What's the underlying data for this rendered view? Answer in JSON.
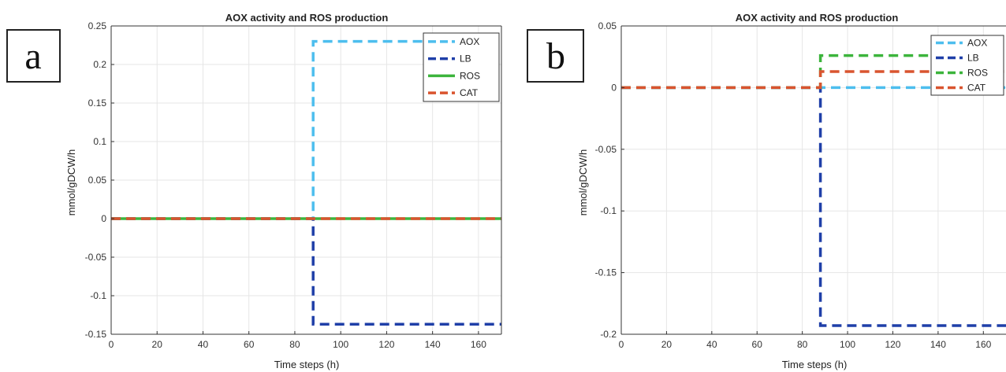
{
  "chart_data": [
    {
      "panel_label": "a",
      "type": "line",
      "title": "AOX activity and ROS production",
      "xlabel": "Time steps (h)",
      "ylabel": "mmol/gDCW/h",
      "xlim": [
        0,
        170
      ],
      "ylim": [
        -0.15,
        0.25
      ],
      "xticks": [
        0,
        20,
        40,
        60,
        80,
        100,
        120,
        140,
        160
      ],
      "xtick_labels": [
        "0",
        "20",
        "40",
        "60",
        "80",
        "100",
        "120",
        "140",
        "160"
      ],
      "yticks": [
        -0.15,
        -0.1,
        -0.05,
        0,
        0.05,
        0.1,
        0.15,
        0.2,
        0.25
      ],
      "ytick_labels": [
        "-0.15",
        "-0.1",
        "-0.05",
        "0",
        "0.05",
        "0.1",
        "0.15",
        "0.2",
        "0.25"
      ],
      "grid": true,
      "legend_position": "top-right",
      "series": [
        {
          "name": "AOX",
          "color": "#4DBEEE",
          "dash": "dashed",
          "points": [
            [
              0,
              0
            ],
            [
              88,
              0
            ],
            [
              88,
              0.23
            ],
            [
              170,
              0.23
            ]
          ]
        },
        {
          "name": "LB",
          "color": "#1F3FA8",
          "dash": "dashed",
          "points": [
            [
              0,
              0
            ],
            [
              88,
              0
            ],
            [
              88,
              -0.137
            ],
            [
              170,
              -0.137
            ]
          ]
        },
        {
          "name": "ROS",
          "color": "#3CB43C",
          "dash": "solid",
          "points": [
            [
              0,
              0
            ],
            [
              170,
              0
            ]
          ]
        },
        {
          "name": "CAT",
          "color": "#D9542F",
          "dash": "dashed",
          "points": [
            [
              0,
              0
            ],
            [
              170,
              0
            ]
          ]
        }
      ]
    },
    {
      "panel_label": "b",
      "type": "line",
      "title": "AOX activity and ROS production",
      "xlabel": "Time steps (h)",
      "ylabel": "mmol/gDCW/h",
      "xlim": [
        0,
        170
      ],
      "ylim": [
        -0.2,
        0.05
      ],
      "xticks": [
        0,
        20,
        40,
        60,
        80,
        100,
        120,
        140,
        160
      ],
      "xtick_labels": [
        "0",
        "20",
        "40",
        "60",
        "80",
        "100",
        "120",
        "140",
        "160"
      ],
      "yticks": [
        -0.2,
        -0.15,
        -0.1,
        -0.05,
        0,
        0.05
      ],
      "ytick_labels": [
        "-0.2",
        "-0.15",
        "-0.1",
        "-0.05",
        "0",
        "0.05"
      ],
      "grid": true,
      "legend_position": "top-right",
      "series": [
        {
          "name": "AOX",
          "color": "#4DBEEE",
          "dash": "dashed",
          "points": [
            [
              0,
              0
            ],
            [
              170,
              0
            ]
          ]
        },
        {
          "name": "LB",
          "color": "#1F3FA8",
          "dash": "dashed",
          "points": [
            [
              0,
              0
            ],
            [
              88,
              0
            ],
            [
              88,
              -0.193
            ],
            [
              170,
              -0.193
            ]
          ]
        },
        {
          "name": "ROS",
          "color": "#3CB43C",
          "dash": "dashed",
          "points": [
            [
              0,
              0
            ],
            [
              88,
              0
            ],
            [
              88,
              0.026
            ],
            [
              170,
              0.026
            ]
          ]
        },
        {
          "name": "CAT",
          "color": "#D9542F",
          "dash": "dashed",
          "points": [
            [
              0,
              0
            ],
            [
              88,
              0
            ],
            [
              88,
              0.013
            ],
            [
              170,
              0.013
            ]
          ]
        }
      ]
    }
  ]
}
